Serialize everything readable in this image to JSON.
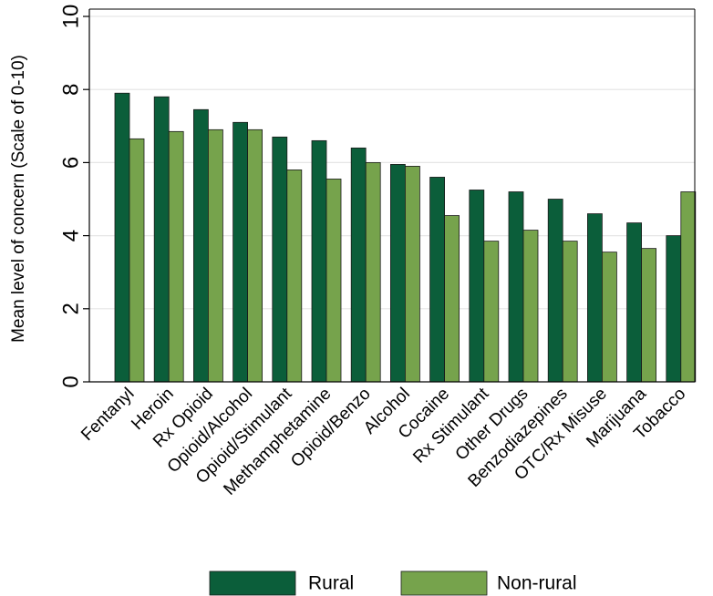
{
  "chart_data": {
    "type": "bar",
    "title": "",
    "xlabel": "",
    "ylabel": "Mean level of concern (Scale of 0-10)",
    "ylim": [
      0,
      10.2
    ],
    "yticks": [
      0,
      2,
      4,
      6,
      8,
      10
    ],
    "grid": true,
    "legend_position": "bottom",
    "categories": [
      "Fentanyl",
      "Heroin",
      "Rx Opioid",
      "Opioid/Alcohol",
      "Opioid/Stimulant",
      "Methamphetamine",
      "Opioid/Benzo",
      "Alcohol",
      "Cocaine",
      "Rx Stimulant",
      "Other Drugs",
      "Benzodiazepines",
      "OTC/Rx Misuse",
      "Marijuana",
      "Tobacco"
    ],
    "series": [
      {
        "name": "Rural",
        "color": "#0b5e3a",
        "values": [
          7.9,
          7.8,
          7.45,
          7.1,
          6.7,
          6.6,
          6.4,
          5.95,
          5.6,
          5.25,
          5.2,
          5.0,
          4.6,
          4.35,
          4.0
        ]
      },
      {
        "name": "Non-rural",
        "color": "#76a34c",
        "values": [
          6.65,
          6.85,
          6.9,
          6.9,
          5.8,
          5.55,
          6.0,
          5.9,
          4.55,
          3.85,
          4.15,
          3.85,
          3.55,
          3.65,
          5.2
        ]
      }
    ]
  }
}
